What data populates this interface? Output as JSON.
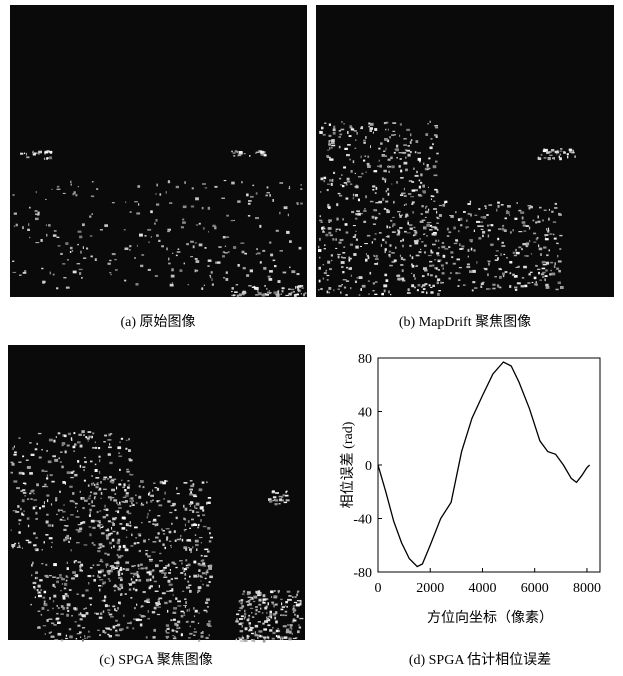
{
  "panels": [
    {
      "caption": "(a) 原始图像"
    },
    {
      "caption": "(b) MapDrift 聚焦图像"
    },
    {
      "caption": "(c) SPGA 聚焦图像"
    }
  ],
  "chart_data": {
    "type": "line",
    "caption": "(d) SPGA 估计相位误差",
    "x_label": "方位向坐标（像素）",
    "y_label": "相位误差 (rad)",
    "x": [
      0,
      300,
      600,
      900,
      1200,
      1500,
      1700,
      2000,
      2400,
      2800,
      3200,
      3600,
      4000,
      4400,
      4800,
      5100,
      5400,
      5800,
      6200,
      6500,
      6800,
      7100,
      7400,
      7600,
      7800,
      8000,
      8100
    ],
    "series": [
      {
        "color": "#000000",
        "values": [
          0,
          -20,
          -42,
          -58,
          -70,
          -76,
          -74,
          -60,
          -40,
          -28,
          10,
          35,
          52,
          68,
          77,
          74,
          62,
          42,
          18,
          10,
          8,
          0,
          -10,
          -13,
          -8,
          -2,
          0
        ]
      }
    ],
    "xlim": [
      0,
      8500
    ],
    "ylim": [
      -80,
      80
    ],
    "xticks": [
      0,
      2000,
      4000,
      6000,
      8000
    ],
    "yticks": [
      -80,
      -40,
      0,
      40,
      80
    ]
  }
}
